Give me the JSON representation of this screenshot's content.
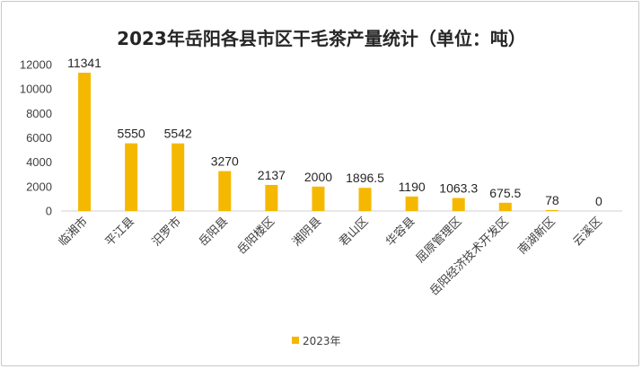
{
  "chart_data": {
    "type": "bar",
    "title": "2023年岳阳各县市区干毛茶产量统计（单位：吨）",
    "xlabel": "",
    "ylabel": "",
    "categories": [
      "临湘市",
      "平江县",
      "汨罗市",
      "岳阳县",
      "岳阳楼区",
      "湘阴县",
      "君山区",
      "华容县",
      "屈原管理区",
      "岳阳经济技术开发区",
      "南湖新区",
      "云溪区"
    ],
    "series": [
      {
        "name": "2023年",
        "values": [
          11341,
          5550,
          5542,
          3270,
          2137,
          2000,
          1896.5,
          1190,
          1063.3,
          675.5,
          78,
          0
        ],
        "labels": [
          "11341",
          "5550",
          "5542",
          "3270",
          "2137",
          "2000",
          "1896.5",
          "1190",
          "1063.3",
          "675.5",
          "78",
          "0"
        ],
        "color": "#f5b800"
      }
    ],
    "yticks": [
      "0",
      "2000",
      "4000",
      "6000",
      "8000",
      "10000",
      "12000"
    ],
    "ylim": [
      0,
      12000
    ],
    "grid": false,
    "legend_position": "bottom"
  }
}
